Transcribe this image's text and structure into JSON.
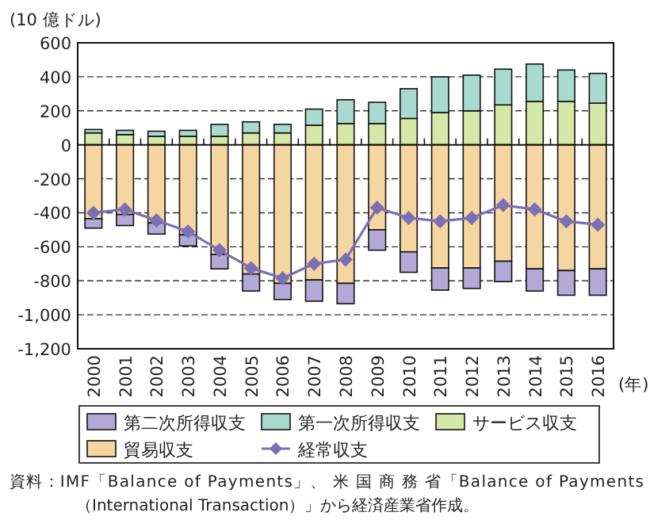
{
  "chart_data": {
    "type": "bar",
    "stacked": true,
    "ylabel": "(10 億ドル)",
    "xlabel": "(年)",
    "categories": [
      "2000",
      "2001",
      "2002",
      "2003",
      "2004",
      "2005",
      "2006",
      "2007",
      "2008",
      "2009",
      "2010",
      "2011",
      "2012",
      "2013",
      "2014",
      "2015",
      "2016"
    ],
    "series": [
      {
        "name": "サービス収支",
        "color": "#d6e8a8",
        "values": [
          70,
          60,
          50,
          50,
          50,
          70,
          70,
          115,
          125,
          125,
          155,
          190,
          200,
          235,
          255,
          255,
          245
        ]
      },
      {
        "name": "第一次所得収支",
        "color": "#a8dad0",
        "values": [
          20,
          25,
          30,
          35,
          70,
          65,
          50,
          95,
          140,
          125,
          175,
          210,
          210,
          210,
          220,
          185,
          175
        ]
      },
      {
        "name": "貿易収支",
        "color": "#f5d5a0",
        "values": [
          -435,
          -410,
          -460,
          -530,
          -645,
          -760,
          -815,
          -795,
          -815,
          -500,
          -630,
          -725,
          -725,
          -685,
          -730,
          -740,
          -730
        ]
      },
      {
        "name": "第二次所得収支",
        "color": "#b3a9d6",
        "values": [
          -55,
          -65,
          -65,
          -65,
          -85,
          -100,
          -95,
          -125,
          -120,
          -120,
          -120,
          -130,
          -120,
          -120,
          -130,
          -145,
          -155
        ]
      },
      {
        "name": "経常収支",
        "type": "line",
        "color": "#7b6fb5",
        "marker": "diamond",
        "values": [
          -400,
          -380,
          -445,
          -510,
          -620,
          -725,
          -785,
          -700,
          -675,
          -370,
          -430,
          -450,
          -430,
          -355,
          -380,
          -450,
          -470
        ]
      }
    ],
    "ylim": [
      -1200,
      600
    ],
    "yticks": [
      {
        "value": -1200,
        "label": "-1,200"
      },
      {
        "value": -1000,
        "label": "-1,000"
      },
      -800,
      -600,
      -400,
      -200,
      0,
      200,
      400,
      600
    ],
    "grid": "y",
    "legend": "bottom",
    "annotations": [
      "資料：IMF「Balance of Payments」、 米 国 商 務 省「Balance of Payments",
      "（International Transaction）」から経済産業省作成。"
    ]
  }
}
